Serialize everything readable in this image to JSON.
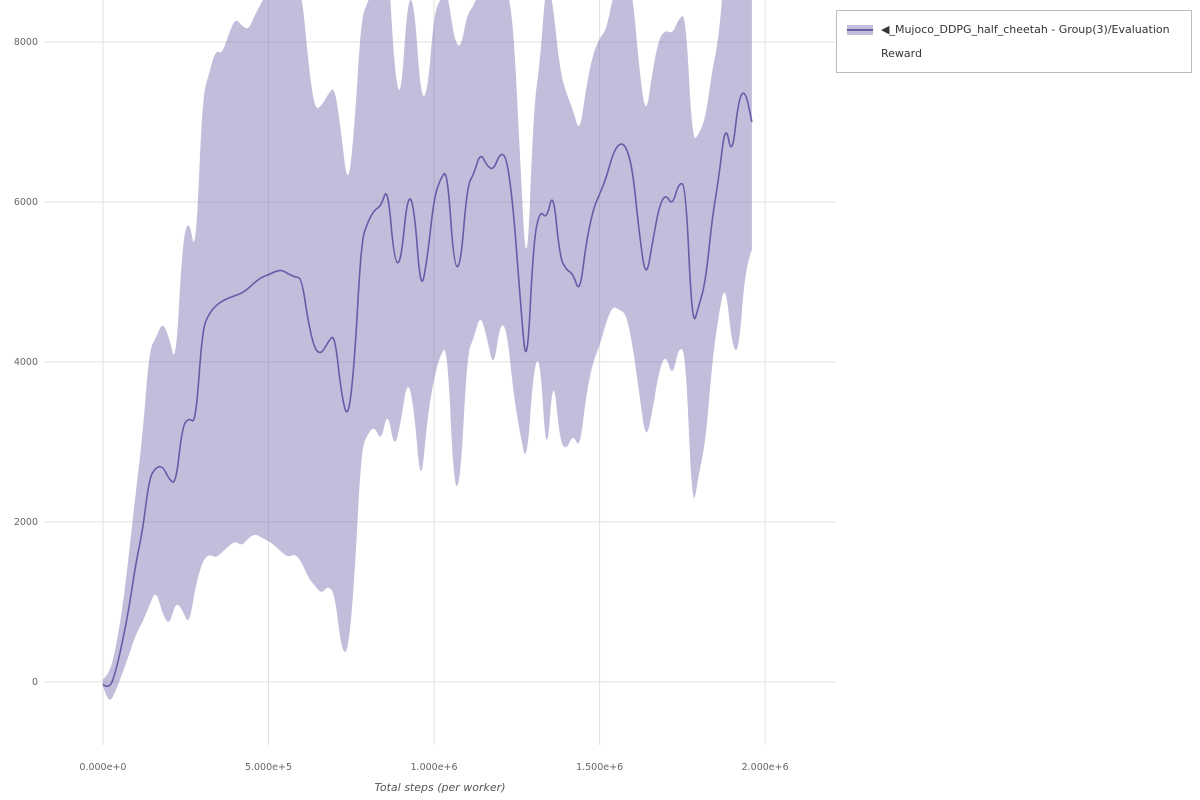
{
  "page": {
    "background": "#ffffff"
  },
  "legend": {
    "position": "outside-top-right",
    "items": [
      {
        "label": "◀_Mujoco_DDPG_half_cheetah - Group(3)/Evaluation Reward",
        "line_color": "#665ca8",
        "band_color": "#776dae"
      }
    ]
  },
  "chart_data": {
    "type": "line",
    "title": "",
    "xlabel": "Total steps (per worker)",
    "ylabel": "",
    "grid": true,
    "legend_position": "outside-top-right",
    "xlim": [
      -175000,
      2211000
    ],
    "ylim": [
      -790,
      8525
    ],
    "band_opacity": 0.45,
    "colors": {
      "line": "#665ca8",
      "band": "#776dae",
      "grid": "#e0e0e0",
      "tick_text": "#666666",
      "axis_title_text": "#555555"
    },
    "x_ticks": [
      {
        "value": 0,
        "label": "0.000e+0"
      },
      {
        "value": 500000,
        "label": "5.000e+5"
      },
      {
        "value": 1000000,
        "label": "1.000e+6"
      },
      {
        "value": 1500000,
        "label": "1.500e+6"
      },
      {
        "value": 2000000,
        "label": "2.000e+6"
      }
    ],
    "y_ticks": [
      {
        "value": 0,
        "label": "0"
      },
      {
        "value": 2000,
        "label": "2000"
      },
      {
        "value": 4000,
        "label": "4000"
      },
      {
        "value": 6000,
        "label": "6000"
      },
      {
        "value": 8000,
        "label": "8000"
      }
    ],
    "series": [
      {
        "name": "◀_Mujoco_DDPG_half_cheetah - Group(3)/Evaluation Reward",
        "x": [
          0,
          20000,
          40000,
          60000,
          80000,
          100000,
          120000,
          140000,
          160000,
          180000,
          200000,
          220000,
          240000,
          260000,
          280000,
          300000,
          320000,
          340000,
          360000,
          380000,
          400000,
          420000,
          440000,
          460000,
          480000,
          500000,
          520000,
          540000,
          560000,
          580000,
          600000,
          620000,
          640000,
          660000,
          680000,
          700000,
          720000,
          740000,
          760000,
          780000,
          800000,
          820000,
          840000,
          860000,
          880000,
          900000,
          920000,
          940000,
          960000,
          980000,
          1000000,
          1020000,
          1040000,
          1060000,
          1080000,
          1100000,
          1120000,
          1140000,
          1160000,
          1180000,
          1200000,
          1220000,
          1240000,
          1260000,
          1280000,
          1300000,
          1320000,
          1340000,
          1360000,
          1380000,
          1400000,
          1420000,
          1440000,
          1460000,
          1480000,
          1500000,
          1520000,
          1540000,
          1560000,
          1580000,
          1600000,
          1620000,
          1640000,
          1660000,
          1680000,
          1700000,
          1720000,
          1740000,
          1760000,
          1780000,
          1800000,
          1820000,
          1840000,
          1860000,
          1880000,
          1900000,
          1920000,
          1940000,
          1960000
        ],
        "mean": [
          -30,
          -100,
          150,
          520,
          950,
          1500,
          1900,
          2550,
          2680,
          2700,
          2530,
          2470,
          3200,
          3300,
          3230,
          4400,
          4600,
          4700,
          4760,
          4800,
          4830,
          4860,
          4920,
          5000,
          5060,
          5090,
          5130,
          5150,
          5100,
          5060,
          5050,
          4500,
          4150,
          4100,
          4250,
          4350,
          3600,
          3260,
          4000,
          5500,
          5750,
          5900,
          5950,
          6200,
          5250,
          5230,
          6100,
          5950,
          4850,
          5300,
          6050,
          6300,
          6400,
          5200,
          5180,
          6200,
          6350,
          6620,
          6450,
          6400,
          6620,
          6550,
          5900,
          4800,
          3820,
          5500,
          5900,
          5780,
          6150,
          5300,
          5150,
          5100,
          4850,
          5500,
          5900,
          6100,
          6300,
          6600,
          6740,
          6700,
          6400,
          5600,
          5020,
          5500,
          5950,
          6100,
          5950,
          6250,
          6200,
          4420,
          4700,
          5000,
          5800,
          6300,
          7000,
          6550,
          7300,
          7400,
          7000
        ],
        "lower": [
          -60,
          -270,
          -100,
          120,
          350,
          600,
          750,
          950,
          1150,
          850,
          700,
          1000,
          900,
          700,
          1200,
          1500,
          1600,
          1550,
          1620,
          1700,
          1760,
          1700,
          1800,
          1850,
          1800,
          1760,
          1700,
          1620,
          1560,
          1600,
          1500,
          1300,
          1200,
          1100,
          1200,
          1100,
          400,
          350,
          1300,
          2900,
          3100,
          3200,
          3000,
          3400,
          2900,
          3250,
          3800,
          3400,
          2400,
          3300,
          3800,
          4100,
          4200,
          2400,
          2500,
          4100,
          4300,
          4600,
          4300,
          3900,
          4500,
          4400,
          3600,
          3100,
          2700,
          3900,
          4100,
          2700,
          3900,
          3000,
          2900,
          3100,
          2900,
          3600,
          4000,
          4200,
          4500,
          4700,
          4650,
          4600,
          4200,
          3600,
          3000,
          3400,
          3900,
          4100,
          3800,
          4200,
          4100,
          2100,
          2600,
          3000,
          4000,
          4600,
          5000,
          4200,
          4100,
          5200,
          5400
        ],
        "upper": [
          30,
          100,
          450,
          950,
          1650,
          2400,
          3100,
          4150,
          4300,
          4500,
          4300,
          3950,
          5500,
          5800,
          5300,
          7300,
          7600,
          7900,
          7850,
          8100,
          8300,
          8200,
          8150,
          8350,
          8500,
          8650,
          8800,
          9000,
          8700,
          8550,
          8650,
          7750,
          7150,
          7200,
          7350,
          7450,
          6850,
          6150,
          6950,
          8300,
          8500,
          8700,
          8850,
          9150,
          7650,
          7250,
          8550,
          8500,
          7300,
          7350,
          8350,
          8550,
          8650,
          8050,
          7900,
          8350,
          8450,
          8700,
          8600,
          8900,
          8750,
          8700,
          8200,
          6550,
          4950,
          7150,
          7750,
          8850,
          8450,
          7650,
          7350,
          7150,
          6850,
          7450,
          7850,
          8050,
          8150,
          8550,
          8850,
          8800,
          8600,
          7650,
          7050,
          7650,
          8050,
          8150,
          8100,
          8300,
          8350,
          6750,
          6850,
          7050,
          7650,
          8050,
          9050,
          8900,
          10400,
          9650,
          8550
        ]
      }
    ]
  }
}
